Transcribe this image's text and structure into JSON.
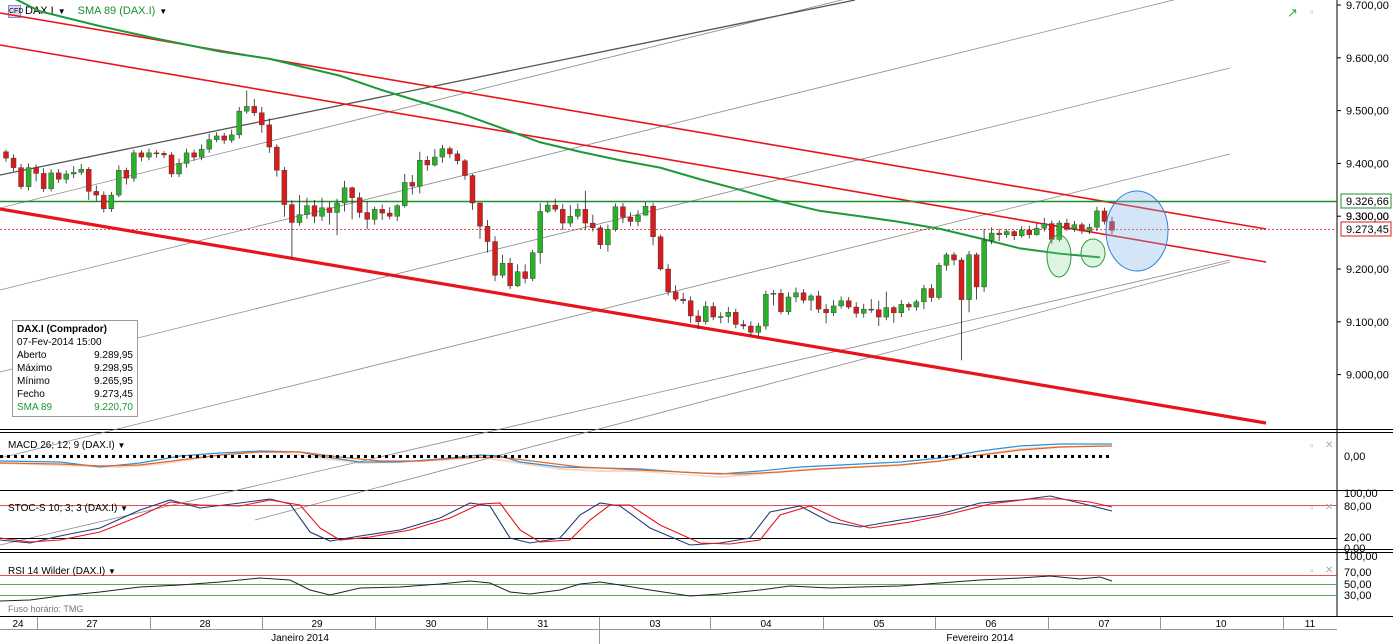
{
  "header": {
    "symbol": "DAX.I",
    "indicator": "SMA 89 (DAX.I)"
  },
  "infobox": {
    "title": "DAX.I (Comprador)",
    "datetime": "07-Fev-2014 15:00",
    "rows": [
      {
        "label": "Aberto",
        "value": "9.289,95"
      },
      {
        "label": "Máximo",
        "value": "9.298,95"
      },
      {
        "label": "Mínimo",
        "value": "9.265,95"
      },
      {
        "label": "Fecho",
        "value": "9.273,45"
      },
      {
        "label": "SMA 89",
        "value": "9.220,70"
      }
    ]
  },
  "panels": {
    "macd": {
      "label": "MACD 26; 12; 9 (DAX.I)",
      "tick": "0,00"
    },
    "stoch": {
      "label": "STOC-S 10; 3; 3 (DAX.I)",
      "ticks": [
        "100,00",
        "80,00",
        "20,00",
        "0,00"
      ]
    },
    "rsi": {
      "label": "RSI 14 Wilder (DAX.I)",
      "ticks": [
        "100,00",
        "70,00",
        "50,00",
        "30,00"
      ]
    }
  },
  "timezone": "Fuso horário: TMG",
  "colors": {
    "up": "#2bb02b",
    "down": "#d81b1b",
    "sma": "#1a9a3a",
    "channel": "#e8141c",
    "support": "#1a8f2a",
    "macd": "#2e8fd8",
    "signal": "#e06a2c",
    "stoch_k": "#1f3d7a",
    "stoch_d": "#e8141c"
  },
  "chart_data": {
    "type": "candlestick",
    "y_ticks": [
      "9.700,00",
      "9.600,00",
      "9.500,00",
      "9.400,00",
      "9.300,00",
      "9.200,00",
      "9.100,00",
      "9.000,00"
    ],
    "ylim": [
      8920,
      9740
    ],
    "price_labels": {
      "support": "9.326,66",
      "last": "9.273,45"
    },
    "x_labels": [
      "24",
      "27",
      "28",
      "29",
      "30",
      "31",
      "03",
      "04",
      "05",
      "06",
      "07",
      "10",
      "11"
    ],
    "month_labels": [
      "Janeiro 2014",
      "Fevereiro 2014"
    ],
    "support_level": 9326.66,
    "last_close": 9273.45,
    "candles": [
      [
        9422,
        9410,
        9426,
        9403
      ],
      [
        9410,
        9392,
        9417,
        9385
      ],
      [
        9392,
        9356,
        9399,
        9351
      ],
      [
        9356,
        9392,
        9400,
        9349
      ],
      [
        9392,
        9381,
        9398,
        9366
      ],
      [
        9381,
        9352,
        9391,
        9346
      ],
      [
        9352,
        9382,
        9389,
        9347
      ],
      [
        9382,
        9370,
        9389,
        9363
      ],
      [
        9370,
        9380,
        9387,
        9362
      ],
      [
        9380,
        9383,
        9395,
        9372
      ],
      [
        9383,
        9389,
        9399,
        9378
      ],
      [
        9389,
        9347,
        9393,
        9331
      ],
      [
        9347,
        9340,
        9358,
        9329
      ],
      [
        9340,
        9314,
        9347,
        9307
      ],
      [
        9314,
        9340,
        9346,
        9308
      ],
      [
        9340,
        9387,
        9396,
        9336
      ],
      [
        9387,
        9372,
        9392,
        9360
      ],
      [
        9372,
        9420,
        9426,
        9365
      ],
      [
        9420,
        9412,
        9425,
        9404
      ],
      [
        9412,
        9420,
        9428,
        9406
      ],
      [
        9420,
        9419,
        9425,
        9411
      ],
      [
        9419,
        9416,
        9423,
        9410
      ],
      [
        9416,
        9380,
        9421,
        9374
      ],
      [
        9380,
        9400,
        9409,
        9374
      ],
      [
        9400,
        9420,
        9428,
        9392
      ],
      [
        9420,
        9412,
        9426,
        9405
      ],
      [
        9412,
        9427,
        9436,
        9406
      ],
      [
        9427,
        9445,
        9456,
        9420
      ],
      [
        9445,
        9452,
        9459,
        9440
      ],
      [
        9452,
        9444,
        9458,
        9437
      ],
      [
        9444,
        9454,
        9464,
        9439
      ],
      [
        9454,
        9499,
        9507,
        9447
      ],
      [
        9499,
        9508,
        9538,
        9494
      ],
      [
        9508,
        9496,
        9522,
        9490
      ],
      [
        9496,
        9473,
        9507,
        9458
      ],
      [
        9473,
        9431,
        9485,
        9420
      ],
      [
        9431,
        9387,
        9436,
        9375
      ],
      [
        9387,
        9322,
        9393,
        9299
      ],
      [
        9322,
        9288,
        9330,
        9220
      ],
      [
        9288,
        9303,
        9340,
        9282
      ],
      [
        9303,
        9320,
        9335,
        9295
      ],
      [
        9320,
        9300,
        9331,
        9287
      ],
      [
        9300,
        9316,
        9335,
        9291
      ],
      [
        9316,
        9307,
        9327,
        9284
      ],
      [
        9307,
        9325,
        9333,
        9264
      ],
      [
        9325,
        9354,
        9367,
        9309
      ],
      [
        9354,
        9335,
        9356,
        9294
      ],
      [
        9335,
        9307,
        9345,
        9297
      ],
      [
        9307,
        9294,
        9328,
        9275
      ],
      [
        9294,
        9313,
        9318,
        9284
      ],
      [
        9313,
        9306,
        9322,
        9293
      ],
      [
        9306,
        9300,
        9317,
        9294
      ],
      [
        9300,
        9320,
        9323,
        9291
      ],
      [
        9320,
        9364,
        9380,
        9316
      ],
      [
        9364,
        9357,
        9378,
        9341
      ],
      [
        9357,
        9406,
        9422,
        9343
      ],
      [
        9406,
        9397,
        9414,
        9386
      ],
      [
        9397,
        9412,
        9427,
        9394
      ],
      [
        9412,
        9428,
        9435,
        9401
      ],
      [
        9428,
        9418,
        9432,
        9410
      ],
      [
        9418,
        9405,
        9424,
        9398
      ],
      [
        9405,
        9377,
        9408,
        9369
      ],
      [
        9377,
        9325,
        9380,
        9312
      ],
      [
        9325,
        9281,
        9326,
        9257
      ],
      [
        9281,
        9252,
        9293,
        9231
      ],
      [
        9252,
        9188,
        9262,
        9177
      ],
      [
        9188,
        9211,
        9227,
        9183
      ],
      [
        9211,
        9168,
        9221,
        9162
      ],
      [
        9168,
        9195,
        9209,
        9166
      ],
      [
        9195,
        9182,
        9209,
        9173
      ],
      [
        9182,
        9231,
        9236,
        9177
      ],
      [
        9231,
        9309,
        9325,
        9210
      ],
      [
        9309,
        9321,
        9327,
        9306
      ],
      [
        9321,
        9313,
        9333,
        9308
      ],
      [
        9313,
        9287,
        9323,
        9274
      ],
      [
        9287,
        9300,
        9321,
        9280
      ],
      [
        9300,
        9313,
        9324,
        9294
      ],
      [
        9313,
        9287,
        9348,
        9274
      ],
      [
        9287,
        9278,
        9303,
        9271
      ],
      [
        9278,
        9246,
        9283,
        9238
      ],
      [
        9246,
        9275,
        9284,
        9233
      ],
      [
        9275,
        9318,
        9324,
        9271
      ],
      [
        9318,
        9298,
        9325,
        9287
      ],
      [
        9298,
        9290,
        9307,
        9281
      ],
      [
        9290,
        9302,
        9311,
        9281
      ],
      [
        9302,
        9319,
        9327,
        9301
      ],
      [
        9319,
        9261,
        9325,
        9245
      ],
      [
        9261,
        9200,
        9265,
        9197
      ],
      [
        9200,
        9157,
        9209,
        9150
      ],
      [
        9157,
        9143,
        9169,
        9139
      ],
      [
        9143,
        9140,
        9155,
        9134
      ],
      [
        9140,
        9111,
        9148,
        9098
      ],
      [
        9111,
        9100,
        9122,
        9086
      ],
      [
        9100,
        9129,
        9139,
        9095
      ],
      [
        9129,
        9109,
        9137,
        9103
      ],
      [
        9109,
        9110,
        9118,
        9097
      ],
      [
        9110,
        9118,
        9128,
        9098
      ],
      [
        9118,
        9095,
        9125,
        9088
      ],
      [
        9095,
        9092,
        9103,
        9086
      ],
      [
        9092,
        9080,
        9101,
        9073
      ],
      [
        9080,
        9092,
        9098,
        9072
      ],
      [
        9092,
        9152,
        9159,
        9085
      ],
      [
        9152,
        9154,
        9160,
        9131
      ],
      [
        9154,
        9119,
        9162,
        9114
      ],
      [
        9119,
        9147,
        9156,
        9113
      ],
      [
        9147,
        9155,
        9165,
        9137
      ],
      [
        9155,
        9141,
        9162,
        9135
      ],
      [
        9141,
        9149,
        9153,
        9121
      ],
      [
        9149,
        9124,
        9158,
        9117
      ],
      [
        9124,
        9117,
        9133,
        9097
      ],
      [
        9117,
        9130,
        9141,
        9111
      ],
      [
        9130,
        9140,
        9148,
        9125
      ],
      [
        9140,
        9128,
        9147,
        9124
      ],
      [
        9128,
        9116,
        9137,
        9108
      ],
      [
        9116,
        9124,
        9134,
        9108
      ],
      [
        9124,
        9123,
        9143,
        9117
      ],
      [
        9123,
        9109,
        9140,
        9092
      ],
      [
        9109,
        9127,
        9157,
        9103
      ],
      [
        9127,
        9117,
        9130,
        9098
      ],
      [
        9117,
        9133,
        9141,
        9109
      ],
      [
        9133,
        9128,
        9137,
        9121
      ],
      [
        9128,
        9138,
        9142,
        9121
      ],
      [
        9138,
        9163,
        9170,
        9124
      ],
      [
        9163,
        9146,
        9171,
        9138
      ],
      [
        9146,
        9207,
        9212,
        9142
      ],
      [
        9207,
        9227,
        9231,
        9197
      ],
      [
        9227,
        9217,
        9232,
        9207
      ],
      [
        9217,
        9142,
        9222,
        9027
      ],
      [
        9142,
        9227,
        9234,
        9118
      ],
      [
        9227,
        9166,
        9231,
        9142
      ],
      [
        9166,
        9254,
        9276,
        9157
      ],
      [
        9254,
        9268,
        9279,
        9247
      ],
      [
        9268,
        9265,
        9276,
        9253
      ],
      [
        9265,
        9271,
        9276,
        9259
      ],
      [
        9271,
        9263,
        9274,
        9255
      ],
      [
        9263,
        9274,
        9281,
        9259
      ],
      [
        9274,
        9265,
        9282,
        9258
      ],
      [
        9265,
        9277,
        9287,
        9263
      ],
      [
        9277,
        9286,
        9297,
        9271
      ],
      [
        9286,
        9256,
        9292,
        9248
      ],
      [
        9256,
        9287,
        9292,
        9252
      ],
      [
        9287,
        9276,
        9295,
        9272
      ],
      [
        9276,
        9284,
        9291,
        9270
      ],
      [
        9284,
        9272,
        9288,
        9266
      ],
      [
        9272,
        9279,
        9286,
        9266
      ],
      [
        9279,
        9310,
        9318,
        9272
      ],
      [
        9310,
        9290,
        9316,
        9284
      ],
      [
        9289.95,
        9273.45,
        9298.95,
        9265.95
      ]
    ],
    "sma89": [
      [
        4,
        9722
      ],
      [
        40,
        9688
      ],
      [
        100,
        9660
      ],
      [
        160,
        9635
      ],
      [
        220,
        9612
      ],
      [
        270,
        9598
      ],
      [
        300,
        9584
      ],
      [
        340,
        9566
      ],
      [
        380,
        9540
      ],
      [
        420,
        9517
      ],
      [
        460,
        9495
      ],
      [
        500,
        9468
      ],
      [
        540,
        9440
      ],
      [
        580,
        9422
      ],
      [
        620,
        9406
      ],
      [
        660,
        9392
      ],
      [
        700,
        9370
      ],
      [
        740,
        9350
      ],
      [
        780,
        9328
      ],
      [
        820,
        9310
      ],
      [
        860,
        9300
      ],
      [
        900,
        9289
      ],
      [
        940,
        9276
      ],
      [
        980,
        9258
      ],
      [
        1020,
        9239
      ],
      [
        1060,
        9229
      ],
      [
        1100,
        9222
      ]
    ]
  }
}
